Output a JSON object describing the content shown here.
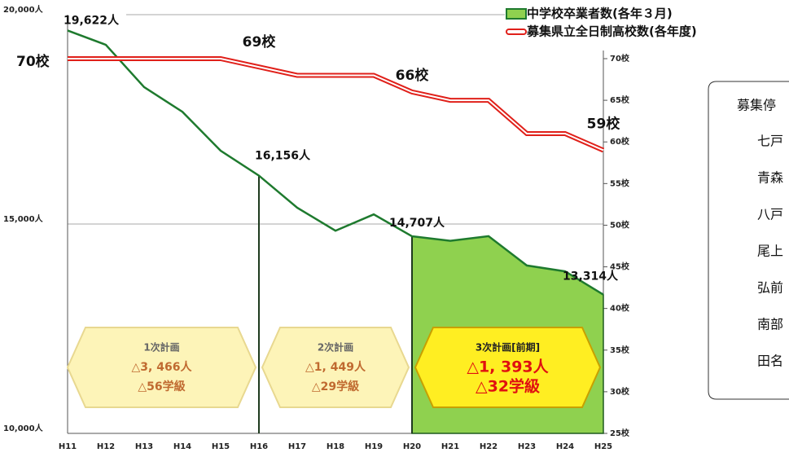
{
  "chart_data": {
    "type": "line",
    "categories": [
      "H11",
      "H12",
      "H13",
      "H14",
      "H15",
      "H16",
      "H17",
      "H18",
      "H19",
      "H20",
      "H21",
      "H22",
      "H23",
      "H24",
      "H25"
    ],
    "series": [
      {
        "name": "中学校卒業者数(各年３月)",
        "color": "#1e7a2e",
        "fill": "#8fd14f",
        "values": [
          19622,
          19280,
          18270,
          17680,
          16750,
          16156,
          15390,
          14840,
          15230,
          14707,
          14600,
          14710,
          14010,
          13870,
          13314
        ],
        "value_labels": [
          "19,622人",
          null,
          null,
          null,
          null,
          "16,156人",
          null,
          null,
          null,
          "14,707人",
          null,
          null,
          null,
          null,
          "13,314人"
        ]
      },
      {
        "name": "募集県立全日制高校数(各年度)",
        "color": "#e0201a",
        "axis": "y2",
        "values": [
          70,
          70,
          70,
          70,
          70,
          69,
          68,
          68,
          68,
          66,
          65,
          65,
          61,
          61,
          59
        ],
        "value_labels": [
          "70校",
          null,
          null,
          null,
          null,
          "69校",
          null,
          null,
          null,
          "66校",
          null,
          null,
          null,
          null,
          "59校"
        ]
      }
    ],
    "ylim": [
      10000,
      20000
    ],
    "yticks": [
      {
        "value": 10000,
        "label": "10,000人"
      },
      {
        "value": 15000,
        "label": "15,000人"
      },
      {
        "value": 20000,
        "label": "20,000人"
      }
    ],
    "y2lim": [
      25,
      70
    ],
    "y2ticks": [
      {
        "value": 25,
        "label": "25校"
      },
      {
        "value": 30,
        "label": "30校"
      },
      {
        "value": 35,
        "label": "35校"
      },
      {
        "value": 40,
        "label": "40校"
      },
      {
        "value": 45,
        "label": "45校"
      },
      {
        "value": 50,
        "label": "50校"
      },
      {
        "value": 55,
        "label": "55校"
      },
      {
        "value": 60,
        "label": "60校"
      },
      {
        "value": 65,
        "label": "65校"
      },
      {
        "value": 70,
        "label": "70校"
      }
    ],
    "legend": "top-right",
    "phases": [
      {
        "label": "1次計画",
        "students": "△3, 466人",
        "classes": "△56学級",
        "start": "H11",
        "end": "H16"
      },
      {
        "label": "2次計画",
        "students": "△1, 449人",
        "classes": "△29学級",
        "start": "H16",
        "end": "H20"
      },
      {
        "label": "3次計画[前期]",
        "students": "△1, 393人",
        "classes": "△32学級",
        "start": "H20",
        "end": "H25",
        "filled": true
      }
    ]
  },
  "side_panel": {
    "title": "募集停",
    "items": [
      "七戸",
      "青森",
      "八戸",
      "尾上",
      "弘前",
      "南部",
      "田名"
    ]
  }
}
